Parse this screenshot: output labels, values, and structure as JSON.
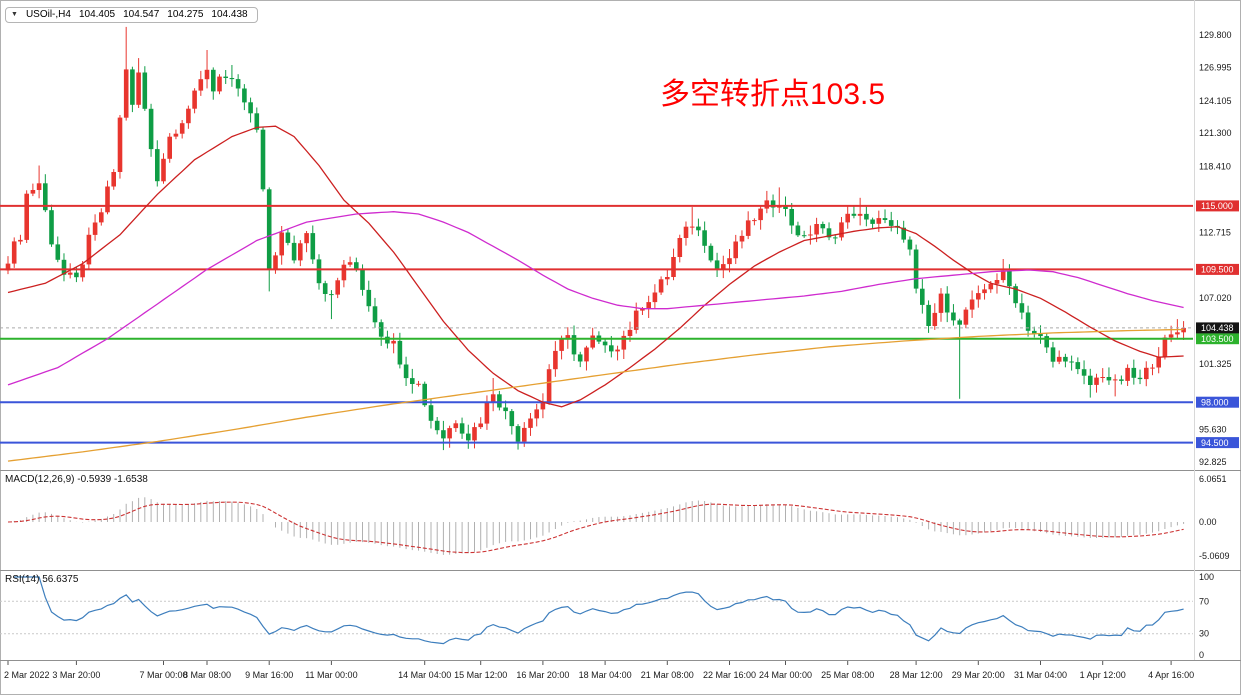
{
  "header": {
    "collapse_icon": "▼",
    "symbol": "USOil-,H4",
    "open": "104.405",
    "high": "104.547",
    "low": "104.275",
    "close": "104.438"
  },
  "annotation": {
    "text": "多空转折点103.5",
    "color": "#ff0000"
  },
  "chart_data": {
    "type": "candlestick",
    "symbol": "USOil-",
    "timeframe": "H4",
    "colors": {
      "up": "#e8352e",
      "down": "#0f9d45",
      "macd_hist": "#b0b0b0",
      "macd_signal": "#cc3333",
      "rsi": "#3d7ebd",
      "current_price": "#141414"
    },
    "price_axis_labels": [
      "129.800",
      "126.995",
      "124.105",
      "121.300",
      "118.410",
      "112.715",
      "107.020",
      "101.325",
      "95.630",
      "92.825"
    ],
    "hlines": [
      {
        "price": 115.0,
        "label": "115.000",
        "color": "#e03030"
      },
      {
        "price": 109.5,
        "label": "109.500",
        "color": "#e03030"
      },
      {
        "price": 103.5,
        "label": "103.500",
        "color": "#2db22d"
      },
      {
        "price": 98.0,
        "label": "98.000",
        "color": "#3a55d9"
      },
      {
        "price": 94.5,
        "label": "94.500",
        "color": "#3a55d9"
      }
    ],
    "current_price": {
      "value": 104.438,
      "label": "104.438"
    },
    "candles": {
      "count": 190,
      "close_anchors": [
        [
          0,
          110.5
        ],
        [
          2,
          112.5
        ],
        [
          3,
          116
        ],
        [
          5,
          117
        ],
        [
          7,
          112
        ],
        [
          9,
          109
        ],
        [
          11,
          108.5
        ],
        [
          13,
          112
        ],
        [
          15,
          114.5
        ],
        [
          17,
          118
        ],
        [
          19,
          127
        ],
        [
          20,
          123.5
        ],
        [
          21,
          126.5
        ],
        [
          23,
          120
        ],
        [
          24,
          117.5
        ],
        [
          26,
          121
        ],
        [
          28,
          122.5
        ],
        [
          30,
          124.5
        ],
        [
          32,
          127
        ],
        [
          33,
          125
        ],
        [
          34,
          126.5
        ],
        [
          36,
          125.5
        ],
        [
          38,
          124
        ],
        [
          40,
          121.5
        ],
        [
          41,
          116
        ],
        [
          42,
          109.5
        ],
        [
          43,
          111
        ],
        [
          44,
          112.5
        ],
        [
          46,
          110.5
        ],
        [
          48,
          113
        ],
        [
          50,
          108.5
        ],
        [
          52,
          107
        ],
        [
          54,
          110
        ],
        [
          56,
          109.5
        ],
        [
          58,
          106.5
        ],
        [
          60,
          104
        ],
        [
          62,
          103
        ],
        [
          64,
          100.5
        ],
        [
          66,
          99.5
        ],
        [
          68,
          96.5
        ],
        [
          70,
          95
        ],
        [
          72,
          96.5
        ],
        [
          74,
          95
        ],
        [
          76,
          96.5
        ],
        [
          78,
          99
        ],
        [
          80,
          97
        ],
        [
          82,
          95
        ],
        [
          84,
          97
        ],
        [
          86,
          98
        ],
        [
          87,
          101
        ],
        [
          88,
          102.5
        ],
        [
          90,
          103.5
        ],
        [
          92,
          101.5
        ],
        [
          94,
          103.5
        ],
        [
          96,
          102.5
        ],
        [
          98,
          103
        ],
        [
          100,
          104.5
        ],
        [
          102,
          106.5
        ],
        [
          104,
          107.5
        ],
        [
          106,
          109
        ],
        [
          108,
          112
        ],
        [
          110,
          113.5
        ],
        [
          112,
          112
        ],
        [
          114,
          109.5
        ],
        [
          116,
          110.5
        ],
        [
          118,
          112.5
        ],
        [
          120,
          114
        ],
        [
          122,
          115
        ],
        [
          124,
          115.5
        ],
        [
          126,
          113.5
        ],
        [
          128,
          112
        ],
        [
          130,
          113.5
        ],
        [
          132,
          112
        ],
        [
          134,
          113.5
        ],
        [
          136,
          114.5
        ],
        [
          138,
          113.5
        ],
        [
          140,
          114
        ],
        [
          142,
          113
        ],
        [
          144,
          112.5
        ],
        [
          145,
          111
        ],
        [
          146,
          107.5
        ],
        [
          148,
          104.5
        ],
        [
          150,
          107
        ],
        [
          152,
          105.5
        ],
        [
          153,
          104.5
        ],
        [
          154,
          106
        ],
        [
          156,
          107
        ],
        [
          158,
          108.5
        ],
        [
          160,
          109
        ],
        [
          162,
          107
        ],
        [
          164,
          104.5
        ],
        [
          166,
          103.5
        ],
        [
          168,
          101.5
        ],
        [
          170,
          102
        ],
        [
          172,
          100.5
        ],
        [
          174,
          99.5
        ],
        [
          176,
          100.5
        ],
        [
          178,
          99.5
        ],
        [
          180,
          100.5
        ],
        [
          182,
          99.8
        ],
        [
          184,
          101.5
        ],
        [
          186,
          103.2
        ],
        [
          188,
          104.1
        ],
        [
          189,
          104.438
        ]
      ],
      "wick_overrides": [
        [
          5,
          "high",
          118.5
        ],
        [
          19,
          "high",
          130.5
        ],
        [
          21,
          "high",
          127.8
        ],
        [
          32,
          "high",
          128.5
        ],
        [
          36,
          "high",
          127.2
        ],
        [
          42,
          "low",
          107.6
        ],
        [
          52,
          "low",
          105.2
        ],
        [
          70,
          "low",
          93.85
        ],
        [
          74,
          "low",
          94.0
        ],
        [
          78,
          "high",
          100.1
        ],
        [
          82,
          "low",
          93.9
        ],
        [
          110,
          "high",
          114.9
        ],
        [
          122,
          "high",
          116.3
        ],
        [
          124,
          "high",
          116.6
        ],
        [
          137,
          "high",
          115.7
        ],
        [
          153,
          "low",
          98.3
        ],
        [
          160,
          "high",
          110.4
        ],
        [
          174,
          "low",
          98.4
        ],
        [
          178,
          "low",
          98.5
        ],
        [
          188,
          "high",
          105.2
        ]
      ]
    },
    "ma_lines": [
      {
        "name": "ma-fast-red",
        "color": "#cc2020",
        "anchors": [
          [
            0,
            107.5
          ],
          [
            6,
            108.3
          ],
          [
            12,
            110
          ],
          [
            18,
            112.5
          ],
          [
            24,
            116
          ],
          [
            30,
            119
          ],
          [
            36,
            121
          ],
          [
            40,
            121.8
          ],
          [
            43,
            121.9
          ],
          [
            46,
            121
          ],
          [
            50,
            118.5
          ],
          [
            54,
            115.5
          ],
          [
            58,
            113.5
          ],
          [
            62,
            111
          ],
          [
            66,
            108
          ],
          [
            70,
            105
          ],
          [
            74,
            102.5
          ],
          [
            78,
            100.5
          ],
          [
            82,
            99
          ],
          [
            86,
            98
          ],
          [
            89,
            97.6
          ],
          [
            92,
            98.2
          ],
          [
            96,
            99.5
          ],
          [
            100,
            101
          ],
          [
            104,
            102.6
          ],
          [
            108,
            104.4
          ],
          [
            112,
            106.4
          ],
          [
            116,
            108.2
          ],
          [
            120,
            109.8
          ],
          [
            124,
            111
          ],
          [
            128,
            112
          ],
          [
            132,
            112.4
          ],
          [
            136,
            112.8
          ],
          [
            140,
            113.1
          ],
          [
            143,
            113.2
          ],
          [
            146,
            112.6
          ],
          [
            149,
            111.5
          ],
          [
            152,
            110.3
          ],
          [
            155,
            109.2
          ],
          [
            158,
            108.3
          ],
          [
            162,
            107.8
          ],
          [
            166,
            107
          ],
          [
            170,
            105.8
          ],
          [
            174,
            104.5
          ],
          [
            178,
            103.3
          ],
          [
            182,
            102.4
          ],
          [
            185,
            101.9
          ],
          [
            189,
            102
          ]
        ]
      },
      {
        "name": "ma-mid-magenta",
        "color": "#cf2bcf",
        "anchors": [
          [
            0,
            99.5
          ],
          [
            8,
            101
          ],
          [
            16,
            103.5
          ],
          [
            24,
            106.5
          ],
          [
            32,
            109.5
          ],
          [
            40,
            112
          ],
          [
            48,
            113.6
          ],
          [
            56,
            114.3
          ],
          [
            62,
            114.5
          ],
          [
            66,
            114.3
          ],
          [
            70,
            113.6
          ],
          [
            74,
            112.7
          ],
          [
            78,
            111.5
          ],
          [
            82,
            110.3
          ],
          [
            86,
            109
          ],
          [
            90,
            107.8
          ],
          [
            94,
            107
          ],
          [
            98,
            106.4
          ],
          [
            102,
            106.1
          ],
          [
            106,
            106.1
          ],
          [
            110,
            106.3
          ],
          [
            116,
            106.6
          ],
          [
            122,
            106.9
          ],
          [
            128,
            107.2
          ],
          [
            134,
            107.6
          ],
          [
            140,
            108.2
          ],
          [
            146,
            108.7
          ],
          [
            152,
            109
          ],
          [
            158,
            109.3
          ],
          [
            164,
            109.45
          ],
          [
            168,
            109.3
          ],
          [
            172,
            108.8
          ],
          [
            176,
            108.1
          ],
          [
            180,
            107.4
          ],
          [
            184,
            106.8
          ],
          [
            189,
            106.2
          ]
        ]
      },
      {
        "name": "ma-slow-orange",
        "color": "#e5a032",
        "anchors": [
          [
            0,
            92.9
          ],
          [
            12,
            93.7
          ],
          [
            24,
            94.6
          ],
          [
            36,
            95.6
          ],
          [
            48,
            96.7
          ],
          [
            60,
            97.7
          ],
          [
            72,
            98.6
          ],
          [
            84,
            99.5
          ],
          [
            96,
            100.4
          ],
          [
            108,
            101.3
          ],
          [
            120,
            102.1
          ],
          [
            132,
            102.8
          ],
          [
            144,
            103.3
          ],
          [
            156,
            103.7
          ],
          [
            168,
            104
          ],
          [
            180,
            104.2
          ],
          [
            189,
            104.3
          ]
        ]
      }
    ],
    "macd": {
      "label": "MACD(12,26,9) -0.5939 -1.6538",
      "fast": 12,
      "slow": 26,
      "signal": 9,
      "axis_labels": [
        "6.0651",
        "0.00",
        "-5.0609"
      ]
    },
    "rsi": {
      "label": "RSI(14) 56.6375",
      "period": 14,
      "axis_labels": [
        "100",
        "70",
        "30",
        "0"
      ],
      "levels": [
        70,
        30
      ]
    },
    "time_axis": [
      {
        "label": "2 Mar 2022",
        "index": 0
      },
      {
        "label": "3 Mar 20:00",
        "index": 11
      },
      {
        "label": "7 Mar 00:00",
        "index": 25
      },
      {
        "label": "8 Mar 08:00",
        "index": 32
      },
      {
        "label": "9 Mar 16:00",
        "index": 42
      },
      {
        "label": "11 Mar 00:00",
        "index": 52
      },
      {
        "label": "14 Mar 04:00",
        "index": 67
      },
      {
        "label": "15 Mar 12:00",
        "index": 76
      },
      {
        "label": "16 Mar 20:00",
        "index": 86
      },
      {
        "label": "18 Mar 04:00",
        "index": 96
      },
      {
        "label": "21 Mar 08:00",
        "index": 106
      },
      {
        "label": "22 Mar 16:00",
        "index": 116
      },
      {
        "label": "24 Mar 00:00",
        "index": 125
      },
      {
        "label": "25 Mar 08:00",
        "index": 135
      },
      {
        "label": "28 Mar 12:00",
        "index": 146
      },
      {
        "label": "29 Mar 20:00",
        "index": 156
      },
      {
        "label": "31 Mar 04:00",
        "index": 166
      },
      {
        "label": "1 Apr 12:00",
        "index": 176
      },
      {
        "label": "4 Apr 16:00",
        "index": 187
      }
    ]
  }
}
